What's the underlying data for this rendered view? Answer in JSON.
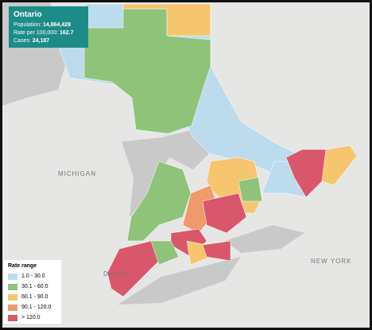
{
  "info": {
    "title": "Ontario",
    "rows": [
      {
        "label": "Population:",
        "value": "14,864,428"
      },
      {
        "label": "Rate per 100,000:",
        "value": "162.7"
      },
      {
        "label": "Cases:",
        "value": "24,187"
      }
    ]
  },
  "legend": {
    "title": "Rate range",
    "items": [
      {
        "label": "1.0 - 30.0",
        "color": "#bcdcee"
      },
      {
        "label": "30.1 - 60.0",
        "color": "#8fc37a"
      },
      {
        "label": "60.1 - 90.0",
        "color": "#f6c66e"
      },
      {
        "label": "90.1 - 120.0",
        "color": "#ee9a6c"
      },
      {
        "label": "> 120.0",
        "color": "#d9576a"
      }
    ]
  },
  "map_labels": [
    "MICHIGAN",
    "NEW YORK",
    "Detroit"
  ]
}
